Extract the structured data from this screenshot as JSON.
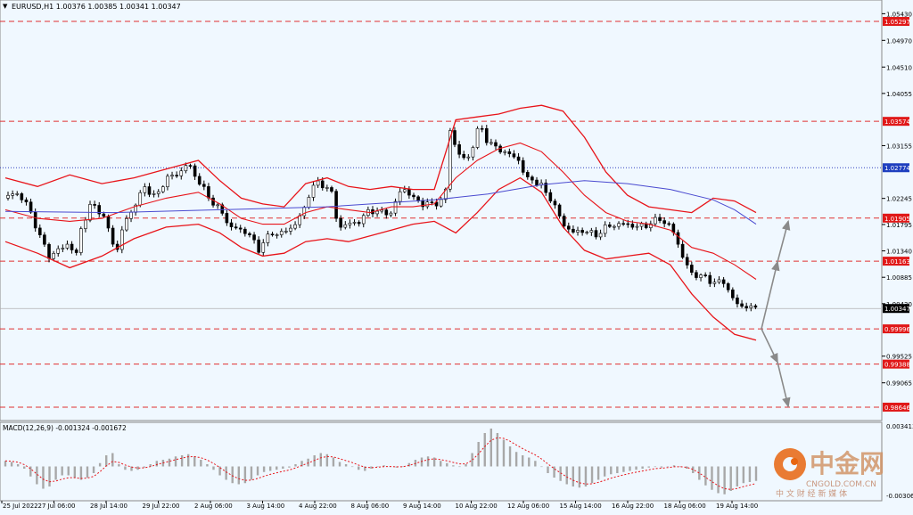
{
  "chart_data": [
    {
      "type": "candlestick",
      "title": "EURUSD,H1 1.00376 1.00385 1.00341 1.00347",
      "symbol": "EURUSD",
      "timeframe": "H1",
      "ohlc": {
        "open": "1.00376",
        "high": "1.00385",
        "low": "1.00341",
        "close": "1.00347"
      },
      "ylim": [
        0.9843,
        1.0562
      ],
      "y_ticks": [
        "1.05430",
        "1.04970",
        "1.04510",
        "1.04055",
        "1.03155",
        "1.02245",
        "1.01795",
        "1.01340",
        "1.00885",
        "1.00430",
        "0.99525",
        "0.99065"
      ],
      "x_ticks": [
        "25 Jul 2022",
        "27 Jul 06:00",
        "28 Jul 14:00",
        "29 Jul 22:00",
        "2 Aug 06:00",
        "3 Aug 14:00",
        "4 Aug 22:00",
        "8 Aug 06:00",
        "9 Aug 14:00",
        "10 Aug 22:00",
        "12 Aug 06:00",
        "15 Aug 14:00",
        "16 Aug 22:00",
        "18 Aug 06:00",
        "19 Aug 14:00"
      ],
      "current_price": "1.00347",
      "price_levels": [
        {
          "value": 1.05297,
          "label": "1.05297",
          "style": "dashed",
          "color": "#e03030"
        },
        {
          "value": 1.03574,
          "label": "1.03574",
          "style": "dashed",
          "color": "#e03030"
        },
        {
          "value": 1.02774,
          "label": "1.02774",
          "style": "dotted",
          "color": "#3040c0"
        },
        {
          "value": 1.01905,
          "label": "1.01905",
          "style": "dashed",
          "color": "#e03030"
        },
        {
          "value": 1.01163,
          "label": "1.01163",
          "style": "dashed",
          "color": "#e03030"
        },
        {
          "value": 0.99996,
          "label": "0.99996",
          "style": "dashed",
          "color": "#e03030"
        },
        {
          "value": 0.99388,
          "label": "0.99388",
          "style": "dashed",
          "color": "#e03030"
        },
        {
          "value": 0.98646,
          "label": "0.98646",
          "style": "dashed",
          "color": "#e03030"
        }
      ],
      "close_path": [
        [
          0,
          1.0225
        ],
        [
          2,
          1.0235
        ],
        [
          4,
          1.0215
        ],
        [
          6,
          1.017
        ],
        [
          8,
          1.0125
        ],
        [
          10,
          1.0135
        ],
        [
          12,
          1.015
        ],
        [
          13,
          1.0115
        ],
        [
          14,
          1.017
        ],
        [
          16,
          1.0215
        ],
        [
          18,
          1.02
        ],
        [
          20,
          1.015
        ],
        [
          21,
          1.0135
        ],
        [
          22,
          1.018
        ],
        [
          24,
          1.021
        ],
        [
          26,
          1.0245
        ],
        [
          28,
          1.0225
        ],
        [
          30,
          1.026
        ],
        [
          32,
          1.0265
        ],
        [
          34,
          1.0285
        ],
        [
          36,
          1.0255
        ],
        [
          38,
          1.0225
        ],
        [
          40,
          1.0205
        ],
        [
          42,
          1.0175
        ],
        [
          44,
          1.017
        ],
        [
          46,
          1.016
        ],
        [
          47,
          1.013
        ],
        [
          48,
          1.015
        ],
        [
          50,
          1.0165
        ],
        [
          52,
          1.0165
        ],
        [
          54,
          1.018
        ],
        [
          56,
          1.021
        ],
        [
          57,
          1.0245
        ],
        [
          58,
          1.025
        ],
        [
          60,
          1.0245
        ],
        [
          61,
          1.023
        ],
        [
          62,
          1.0175
        ],
        [
          64,
          1.018
        ],
        [
          66,
          1.0185
        ],
        [
          68,
          1.0205
        ],
        [
          70,
          1.02
        ],
        [
          72,
          1.02
        ],
        [
          74,
          1.0245
        ],
        [
          76,
          1.0225
        ],
        [
          78,
          1.0215
        ],
        [
          80,
          1.0215
        ],
        [
          82,
          1.0225
        ],
        [
          83,
          1.035
        ],
        [
          84,
          1.031
        ],
        [
          85,
          1.0295
        ],
        [
          86,
          1.029
        ],
        [
          87,
          1.031
        ],
        [
          88,
          1.034
        ],
        [
          89,
          1.0345
        ],
        [
          90,
          1.032
        ],
        [
          91,
          1.0315
        ],
        [
          92,
          1.031
        ],
        [
          94,
          1.03
        ],
        [
          96,
          1.029
        ],
        [
          97,
          1.0255
        ],
        [
          98,
          1.026
        ],
        [
          100,
          1.0245
        ],
        [
          102,
          1.022
        ],
        [
          104,
          1.018
        ],
        [
          106,
          1.0165
        ],
        [
          108,
          1.017
        ],
        [
          110,
          1.016
        ],
        [
          112,
          1.0175
        ],
        [
          114,
          1.018
        ],
        [
          116,
          1.018
        ],
        [
          118,
          1.0175
        ],
        [
          120,
          1.018
        ],
        [
          122,
          1.019
        ],
        [
          124,
          1.0175
        ],
        [
          125,
          1.016
        ],
        [
          126,
          1.013
        ],
        [
          127,
          1.011
        ],
        [
          128,
          1.0095
        ],
        [
          130,
          1.009
        ],
        [
          132,
          1.008
        ],
        [
          134,
          1.008
        ],
        [
          135,
          1.0065
        ],
        [
          136,
          1.0045
        ],
        [
          137,
          1.0038
        ],
        [
          138,
          1.004
        ],
        [
          139,
          1.0036
        ],
        [
          140,
          1.00347
        ]
      ],
      "bollinger_upper": [
        [
          0,
          1.026
        ],
        [
          6,
          1.0245
        ],
        [
          12,
          1.0265
        ],
        [
          18,
          1.025
        ],
        [
          24,
          1.026
        ],
        [
          30,
          1.0275
        ],
        [
          36,
          1.029
        ],
        [
          40,
          1.0255
        ],
        [
          44,
          1.0225
        ],
        [
          48,
          1.0215
        ],
        [
          52,
          1.021
        ],
        [
          56,
          1.025
        ],
        [
          60,
          1.026
        ],
        [
          64,
          1.0245
        ],
        [
          68,
          1.024
        ],
        [
          72,
          1.0245
        ],
        [
          76,
          1.024
        ],
        [
          80,
          1.024
        ],
        [
          84,
          1.036
        ],
        [
          88,
          1.0365
        ],
        [
          92,
          1.037
        ],
        [
          96,
          1.038
        ],
        [
          100,
          1.0385
        ],
        [
          104,
          1.0375
        ],
        [
          108,
          1.033
        ],
        [
          112,
          1.027
        ],
        [
          116,
          1.023
        ],
        [
          120,
          1.021
        ],
        [
          124,
          1.0205
        ],
        [
          128,
          1.02
        ],
        [
          132,
          1.0225
        ],
        [
          136,
          1.022
        ],
        [
          140,
          1.02
        ]
      ],
      "bollinger_middle": [
        [
          0,
          1.0205
        ],
        [
          6,
          1.019
        ],
        [
          12,
          1.0185
        ],
        [
          18,
          1.019
        ],
        [
          24,
          1.021
        ],
        [
          30,
          1.0225
        ],
        [
          36,
          1.0235
        ],
        [
          40,
          1.0215
        ],
        [
          44,
          1.019
        ],
        [
          48,
          1.018
        ],
        [
          52,
          1.018
        ],
        [
          56,
          1.02
        ],
        [
          60,
          1.021
        ],
        [
          64,
          1.0205
        ],
        [
          68,
          1.02
        ],
        [
          72,
          1.021
        ],
        [
          76,
          1.021
        ],
        [
          80,
          1.0215
        ],
        [
          84,
          1.026
        ],
        [
          88,
          1.029
        ],
        [
          92,
          1.031
        ],
        [
          96,
          1.032
        ],
        [
          100,
          1.0305
        ],
        [
          104,
          1.027
        ],
        [
          108,
          1.023
        ],
        [
          112,
          1.02
        ],
        [
          116,
          1.0185
        ],
        [
          120,
          1.018
        ],
        [
          124,
          1.017
        ],
        [
          128,
          1.014
        ],
        [
          132,
          1.013
        ],
        [
          136,
          1.011
        ],
        [
          140,
          1.0085
        ]
      ],
      "bollinger_lower": [
        [
          0,
          1.015
        ],
        [
          6,
          1.013
        ],
        [
          12,
          1.0105
        ],
        [
          18,
          1.0125
        ],
        [
          24,
          1.0155
        ],
        [
          30,
          1.0175
        ],
        [
          36,
          1.018
        ],
        [
          40,
          1.0165
        ],
        [
          44,
          1.014
        ],
        [
          48,
          1.0125
        ],
        [
          52,
          1.013
        ],
        [
          56,
          1.015
        ],
        [
          60,
          1.0155
        ],
        [
          64,
          1.015
        ],
        [
          68,
          1.016
        ],
        [
          72,
          1.017
        ],
        [
          76,
          1.018
        ],
        [
          80,
          1.0185
        ],
        [
          84,
          1.0165
        ],
        [
          88,
          1.02
        ],
        [
          92,
          1.024
        ],
        [
          96,
          1.026
        ],
        [
          100,
          1.0235
        ],
        [
          104,
          1.0175
        ],
        [
          108,
          1.0135
        ],
        [
          112,
          1.012
        ],
        [
          116,
          1.0125
        ],
        [
          120,
          1.013
        ],
        [
          124,
          1.011
        ],
        [
          128,
          1.006
        ],
        [
          132,
          1.002
        ],
        [
          136,
          0.999
        ],
        [
          140,
          0.998
        ]
      ],
      "sma_blue": [
        [
          0,
          1.0202
        ],
        [
          20,
          1.02
        ],
        [
          40,
          1.0205
        ],
        [
          60,
          1.021
        ],
        [
          80,
          1.0222
        ],
        [
          90,
          1.0232
        ],
        [
          100,
          1.0248
        ],
        [
          108,
          1.0255
        ],
        [
          116,
          1.025
        ],
        [
          124,
          1.024
        ],
        [
          132,
          1.0222
        ],
        [
          136,
          1.0205
        ],
        [
          140,
          1.018
        ]
      ],
      "projection_arrows": [
        {
          "from": [
            141,
            0.99996
          ],
          "to": [
            144,
            1.0115
          ]
        },
        {
          "from": [
            144,
            1.0115
          ],
          "to": [
            146,
            1.0185
          ]
        },
        {
          "from": [
            141,
            0.99996
          ],
          "to": [
            144,
            0.9942
          ]
        },
        {
          "from": [
            144,
            0.9942
          ],
          "to": [
            146,
            0.9866
          ]
        }
      ]
    },
    {
      "type": "histogram",
      "title": "MACD(12,26,9) -0.001324 -0.001672",
      "ylim": [
        -0.003,
        0.0038
      ],
      "y_ticks": [
        "0.003413",
        "-0.003065"
      ],
      "values": [
        0.0005,
        0.0004,
        0.0002,
        -0.0002,
        -0.0009,
        -0.0016,
        -0.002,
        -0.0018,
        -0.0012,
        -0.0008,
        -0.0008,
        -0.001,
        -0.0012,
        -0.001,
        -0.0006,
        0.0003,
        0.001,
        0.0012,
        0.0002,
        -0.0003,
        -0.0004,
        -0.0003,
        -0.0001,
        0.0002,
        0.0005,
        0.0006,
        0.0007,
        0.0009,
        0.001,
        0.0011,
        0.0009,
        0.0006,
        0.0002,
        -0.0003,
        -0.0008,
        -0.0012,
        -0.0015,
        -0.0016,
        -0.0015,
        -0.0012,
        -0.0008,
        -0.0005,
        -0.0004,
        -0.0003,
        -0.0002,
        -0.0001,
        0.0002,
        0.0005,
        0.0007,
        0.001,
        0.0012,
        0.0011,
        0.0008,
        0.0004,
        0.0002,
        0.0,
        -0.0003,
        -0.0004,
        -0.0002,
        0.0,
        0.0001,
        0.0,
        -0.0001,
        0.0,
        0.0003,
        0.0006,
        0.0008,
        0.0009,
        0.0008,
        0.0005,
        0.0003,
        0.0001,
        0.0,
        0.0002,
        0.0012,
        0.0022,
        0.003,
        0.0034,
        0.003,
        0.0024,
        0.0018,
        0.0013,
        0.001,
        0.0008,
        0.0005,
        0.0,
        -0.0006,
        -0.001,
        -0.0013,
        -0.0016,
        -0.0018,
        -0.0019,
        -0.0018,
        -0.0015,
        -0.0012,
        -0.0009,
        -0.0007,
        -0.0006,
        -0.0005,
        -0.0004,
        -0.0003,
        -0.0002,
        -0.0001,
        0.0,
        -0.0001,
        0.0,
        0.0001,
        0.0,
        -0.0002,
        -0.0006,
        -0.0012,
        -0.0017,
        -0.0021,
        -0.0024,
        -0.0025,
        -0.0022,
        -0.0018,
        -0.0015,
        -0.0014,
        -0.0013
      ]
    }
  ],
  "watermark": {
    "name_cn": "中金网",
    "domain": "CNGOLD.COM.CN",
    "tagline_cn": "中 文 财 经 新 媒 体"
  }
}
